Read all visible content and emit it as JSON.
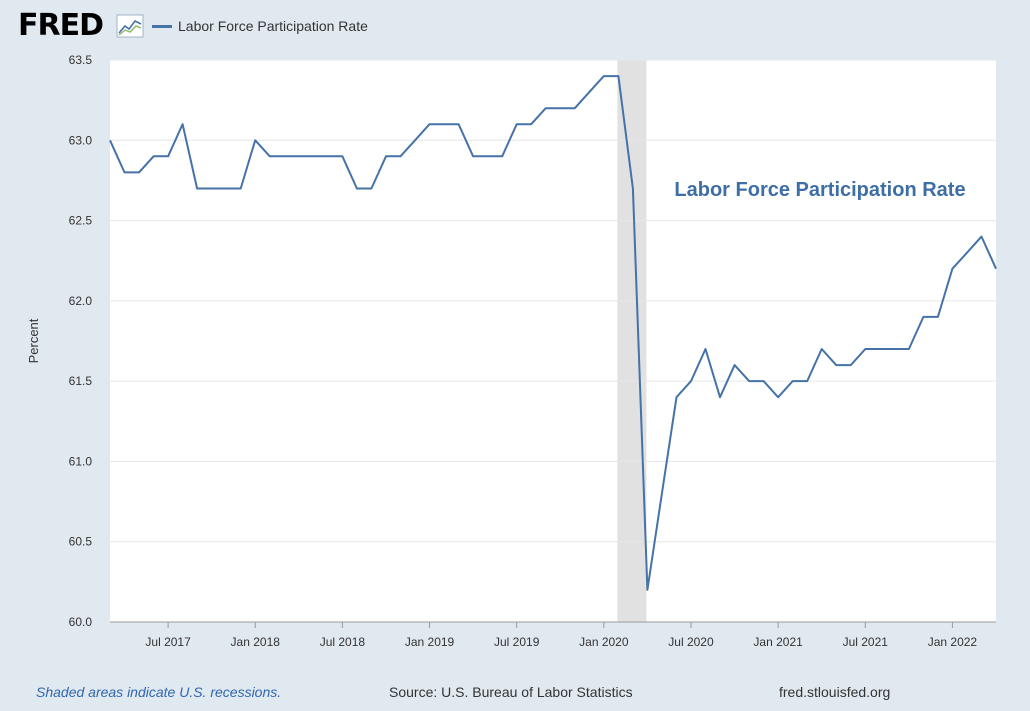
{
  "brand": {
    "logo_text": "FRED",
    "logo_icon": "line-graph-icon"
  },
  "colors": {
    "series": "#4572a7",
    "recession": "#e1e1e1",
    "grid": "#e6e6e6",
    "plot_bg": "#ffffff",
    "page_bg": "#e1e9f0",
    "annotation": "#3e6ea6"
  },
  "footer": {
    "recession_note": "Shaded areas indicate U.S. recessions.",
    "source": "Source: U.S. Bureau of Labor Statistics",
    "site": "fred.stlouisfed.org"
  },
  "chart_data": {
    "type": "line",
    "title": "",
    "ylabel": "Percent",
    "xlabel": "",
    "ylim": [
      60.0,
      63.5
    ],
    "xlim": [
      "2017-03",
      "2022-04"
    ],
    "yticks": [
      "60.0",
      "60.5",
      "61.0",
      "61.5",
      "62.0",
      "62.5",
      "63.0",
      "63.5"
    ],
    "xticks": [
      {
        "label": "Jul 2017",
        "date": "2017-07"
      },
      {
        "label": "Jan 2018",
        "date": "2018-01"
      },
      {
        "label": "Jul 2018",
        "date": "2018-07"
      },
      {
        "label": "Jan 2019",
        "date": "2019-01"
      },
      {
        "label": "Jul 2019",
        "date": "2019-07"
      },
      {
        "label": "Jan 2020",
        "date": "2020-01"
      },
      {
        "label": "Jul 2020",
        "date": "2020-07"
      },
      {
        "label": "Jan 2021",
        "date": "2021-01"
      },
      {
        "label": "Jul 2021",
        "date": "2021-07"
      },
      {
        "label": "Jan 2022",
        "date": "2022-01"
      }
    ],
    "grid": true,
    "legend": "top-left",
    "annotation": "Labor Force Participation Rate",
    "recessions": [
      {
        "start": "2020-02",
        "end": "2020-04"
      }
    ],
    "series": [
      {
        "name": "Labor Force Participation Rate",
        "x": [
          "2017-03",
          "2017-04",
          "2017-05",
          "2017-06",
          "2017-07",
          "2017-08",
          "2017-09",
          "2017-10",
          "2017-11",
          "2017-12",
          "2018-01",
          "2018-02",
          "2018-03",
          "2018-04",
          "2018-05",
          "2018-06",
          "2018-07",
          "2018-08",
          "2018-09",
          "2018-10",
          "2018-11",
          "2018-12",
          "2019-01",
          "2019-02",
          "2019-03",
          "2019-04",
          "2019-05",
          "2019-06",
          "2019-07",
          "2019-08",
          "2019-09",
          "2019-10",
          "2019-11",
          "2019-12",
          "2020-01",
          "2020-02",
          "2020-03",
          "2020-04",
          "2020-05",
          "2020-06",
          "2020-07",
          "2020-08",
          "2020-09",
          "2020-10",
          "2020-11",
          "2020-12",
          "2021-01",
          "2021-02",
          "2021-03",
          "2021-04",
          "2021-05",
          "2021-06",
          "2021-07",
          "2021-08",
          "2021-09",
          "2021-10",
          "2021-11",
          "2021-12",
          "2022-01",
          "2022-02",
          "2022-03",
          "2022-04"
        ],
        "values": [
          63.0,
          62.8,
          62.8,
          62.9,
          62.9,
          63.1,
          62.7,
          62.7,
          62.7,
          62.7,
          63.0,
          62.9,
          62.9,
          62.9,
          62.9,
          62.9,
          62.9,
          62.7,
          62.7,
          62.9,
          62.9,
          63.0,
          63.1,
          63.1,
          63.1,
          62.9,
          62.9,
          62.9,
          63.1,
          63.1,
          63.2,
          63.2,
          63.2,
          63.3,
          63.4,
          63.4,
          62.7,
          60.2,
          60.8,
          61.4,
          61.5,
          61.7,
          61.4,
          61.6,
          61.5,
          61.5,
          61.4,
          61.5,
          61.5,
          61.7,
          61.6,
          61.6,
          61.7,
          61.7,
          61.7,
          61.7,
          61.9,
          61.9,
          62.2,
          62.3,
          62.4,
          62.2
        ]
      }
    ]
  }
}
